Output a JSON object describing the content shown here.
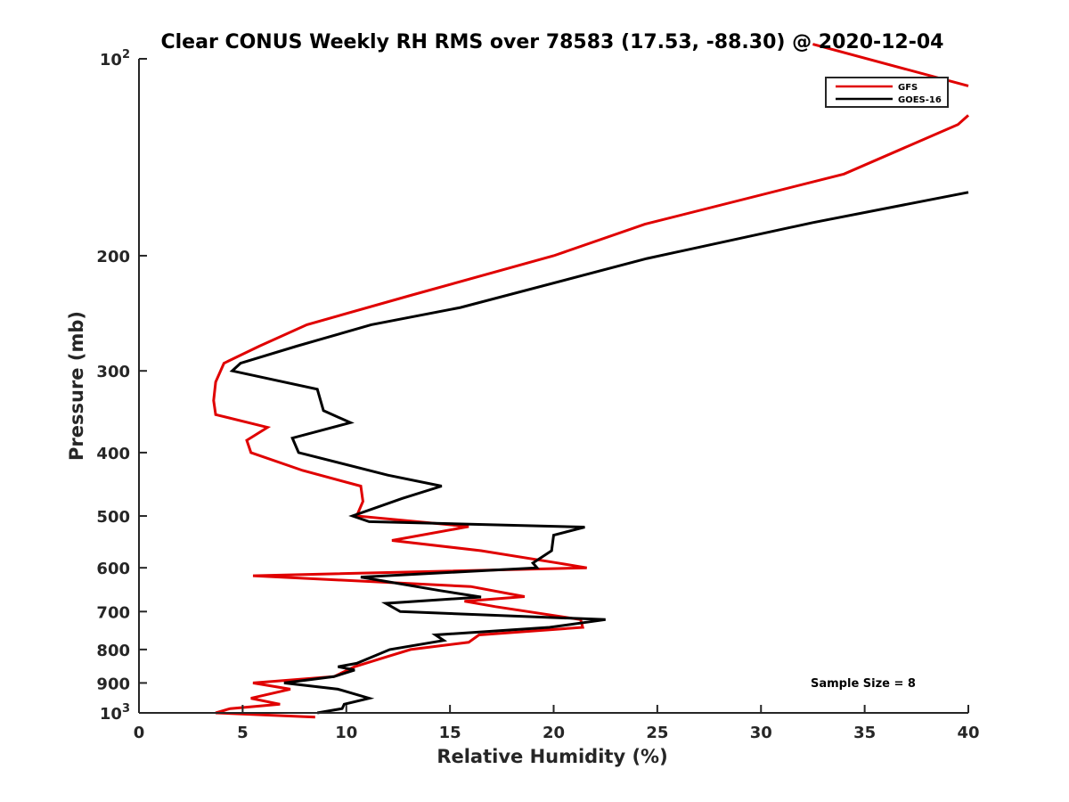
{
  "chart_data": {
    "type": "line",
    "title": "Clear CONUS Weekly RH RMS over 78583 (17.53, -88.30) @ 2020-12-04",
    "xlabel": "Relative Humidity (%)",
    "ylabel": "Pressure (mb)",
    "xlim": [
      0,
      40
    ],
    "ylim": [
      100,
      1000
    ],
    "yscale": "log",
    "y_reversed": true,
    "grid": false,
    "legend_position": "top-right",
    "x_ticks": [
      "0",
      "5",
      "10",
      "15",
      "20",
      "25",
      "30",
      "35",
      "40"
    ],
    "y_ticks": [
      {
        "value": 100,
        "base": "10",
        "exp": "2"
      },
      {
        "value": 200,
        "label": "200"
      },
      {
        "value": 300,
        "label": "300"
      },
      {
        "value": 400,
        "label": "400"
      },
      {
        "value": 500,
        "label": "500"
      },
      {
        "value": 600,
        "label": "600"
      },
      {
        "value": 700,
        "label": "700"
      },
      {
        "value": 800,
        "label": "800"
      },
      {
        "value": 900,
        "label": "900"
      },
      {
        "value": 1000,
        "base": "10",
        "exp": "3"
      }
    ],
    "annotation": "Sample Size = 8",
    "series": [
      {
        "name": "GFS",
        "color": "#e00000",
        "points": [
          [
            32.5,
            95
          ],
          [
            40.0,
            110
          ],
          null,
          [
            40.0,
            122
          ],
          [
            39.5,
            126
          ],
          [
            34.0,
            150
          ],
          [
            24.4,
            179
          ],
          [
            20.0,
            200
          ],
          [
            13.1,
            230
          ],
          [
            8.1,
            255
          ],
          [
            5.8,
            275
          ],
          [
            4.1,
            292
          ],
          [
            3.7,
            312
          ],
          [
            3.6,
            333
          ],
          [
            3.7,
            350
          ],
          [
            6.2,
            366
          ],
          [
            5.2,
            383
          ],
          [
            5.4,
            400
          ],
          [
            7.9,
            426
          ],
          [
            10.7,
            450
          ],
          [
            10.8,
            475
          ],
          [
            10.5,
            500
          ],
          [
            15.9,
            519
          ],
          [
            12.2,
            545
          ],
          [
            16.5,
            565
          ],
          [
            20.2,
            590
          ],
          [
            21.6,
            600
          ],
          [
            5.5,
            617
          ],
          [
            16.0,
            641
          ],
          [
            18.6,
            664
          ],
          [
            15.7,
            675
          ],
          [
            17.2,
            688
          ],
          [
            21.3,
            720
          ],
          [
            21.4,
            740
          ],
          [
            16.4,
            760
          ],
          [
            15.9,
            780
          ],
          [
            13.1,
            800
          ],
          [
            12.0,
            820
          ],
          [
            10.4,
            850
          ],
          [
            9.4,
            880
          ],
          [
            5.5,
            900
          ],
          [
            7.3,
            920
          ],
          [
            5.4,
            950
          ],
          [
            6.8,
            970
          ],
          [
            4.4,
            985
          ],
          [
            3.7,
            1000
          ],
          [
            8.5,
            1015
          ]
        ]
      },
      {
        "name": "GOES-16",
        "color": "#000000",
        "points": [
          [
            40.0,
            160
          ],
          [
            32.5,
            178
          ],
          [
            24.5,
            202
          ],
          [
            15.5,
            240
          ],
          [
            11.2,
            255
          ],
          [
            7.6,
            275
          ],
          [
            4.9,
            292
          ],
          [
            4.5,
            300
          ],
          [
            8.6,
            320
          ],
          [
            8.9,
            345
          ],
          [
            10.2,
            360
          ],
          [
            7.4,
            380
          ],
          [
            7.7,
            400
          ],
          [
            12.0,
            433
          ],
          [
            14.6,
            450
          ],
          [
            12.7,
            470
          ],
          [
            10.3,
            500
          ],
          [
            11.1,
            510
          ],
          [
            21.5,
            520
          ],
          [
            20.0,
            535
          ],
          [
            19.9,
            565
          ],
          [
            19.0,
            590
          ],
          [
            19.2,
            600
          ],
          [
            10.7,
            620
          ],
          [
            14.5,
            650
          ],
          [
            16.5,
            665
          ],
          [
            11.9,
            680
          ],
          [
            12.6,
            700
          ],
          [
            22.5,
            720
          ],
          [
            19.8,
            740
          ],
          [
            14.3,
            760
          ],
          [
            14.7,
            775
          ],
          [
            12.1,
            800
          ],
          [
            10.5,
            840
          ],
          [
            9.6,
            850
          ],
          [
            10.4,
            860
          ],
          [
            9.4,
            880
          ],
          [
            7.0,
            900
          ],
          [
            9.6,
            920
          ],
          [
            11.1,
            950
          ],
          [
            9.9,
            970
          ],
          [
            9.8,
            985
          ],
          [
            8.6,
            1000
          ]
        ]
      }
    ]
  }
}
